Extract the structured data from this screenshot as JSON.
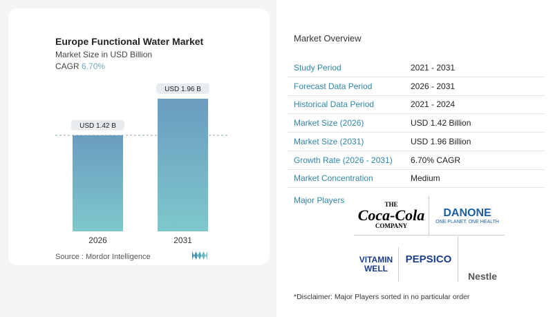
{
  "title": "Europe Functional Water Market",
  "subtitle": "Market Size in USD Billion",
  "cagr_label": "CAGR",
  "cagr_value": "6.70%",
  "source": "Source :  Mordor Intelligence",
  "chart_data": {
    "type": "bar",
    "categories": [
      "2026",
      "2031"
    ],
    "values": [
      1.42,
      1.96
    ],
    "data_labels": [
      "USD 1.42 B",
      "USD 1.96 B"
    ],
    "ylabel": "Market Size in USD Billion",
    "colors": [
      "#6a9cc0",
      "#7ec8cc"
    ]
  },
  "overview": {
    "title": "Market Overview",
    "rows": [
      {
        "k": "Study Period",
        "v": "2021 - 2031"
      },
      {
        "k": "Forecast Data Period",
        "v": "2026 - 2031"
      },
      {
        "k": "Historical Data Period",
        "v": "2021 - 2024"
      },
      {
        "k": "Market Size (2026)",
        "v": "USD 1.42 Billion"
      },
      {
        "k": "Market Size (2031)",
        "v": "USD 1.96 Billion"
      },
      {
        "k": "Growth Rate (2026 - 2031)",
        "v": "6.70% CAGR"
      },
      {
        "k": "Market Concentration",
        "v": "Medium"
      }
    ],
    "major_players_label": "Major Players",
    "players": [
      "The Coca-Cola Company",
      "Danone",
      "Vitamin Well",
      "PepsiCo",
      "Nestle"
    ],
    "disclaimer": "*Disclaimer: Major Players sorted in no particular order"
  }
}
